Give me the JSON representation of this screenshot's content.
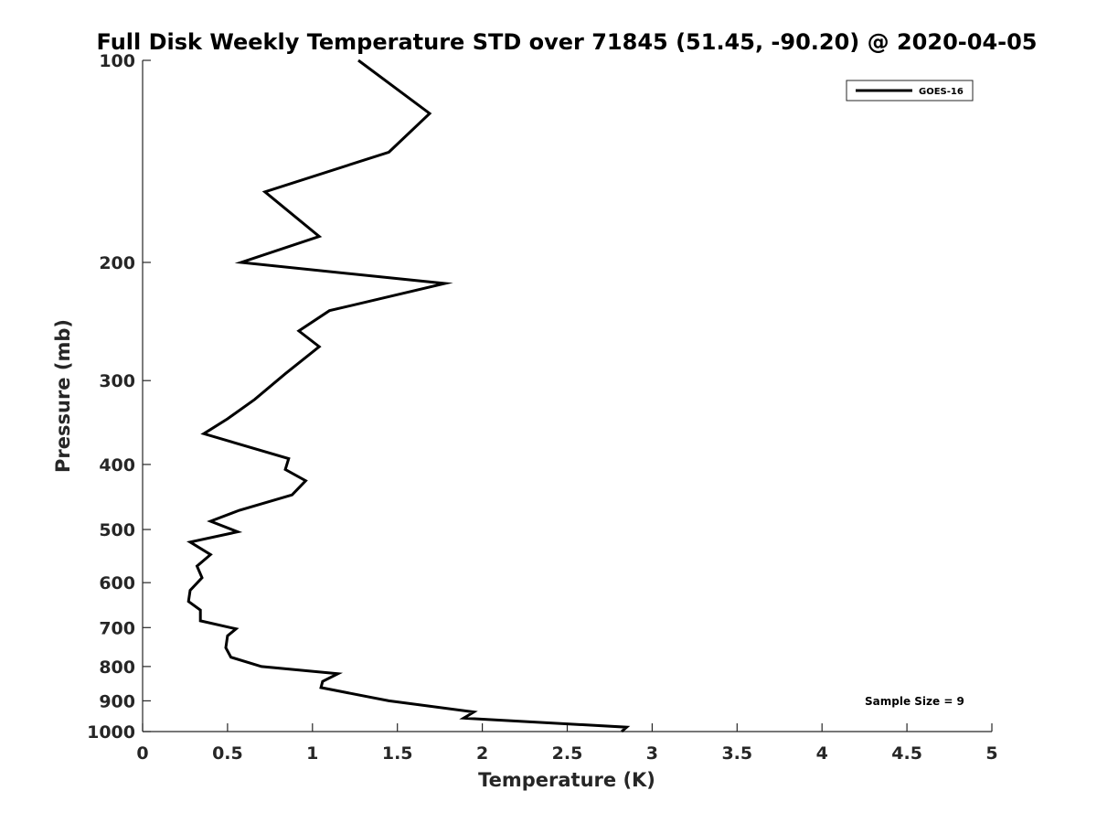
{
  "chart_data": {
    "type": "line",
    "title": "Full Disk Weekly Temperature STD over 71845 (51.45, -90.20) @ 2020-04-05",
    "xlabel": "Temperature (K)",
    "ylabel": "Pressure (mb)",
    "xlim": [
      0,
      5
    ],
    "ylim": [
      100,
      1000
    ],
    "y_scale": "log",
    "y_reversed": true,
    "x_ticks": [
      "0",
      "0.5",
      "1",
      "1.5",
      "2",
      "2.5",
      "3",
      "3.5",
      "4",
      "4.5",
      "5"
    ],
    "y_ticks": [
      "100",
      "200",
      "300",
      "400",
      "500",
      "600",
      "700",
      "800",
      "900",
      "1000"
    ],
    "grid": false,
    "legend_position": "top-right",
    "series": [
      {
        "name": "GOES-16",
        "color": "#000000",
        "x": [
          1.27,
          1.69,
          1.45,
          0.72,
          1.04,
          0.58,
          1.78,
          1.1,
          0.92,
          1.04,
          0.84,
          0.66,
          0.5,
          0.36,
          0.86,
          0.84,
          0.96,
          0.88,
          0.57,
          0.4,
          0.56,
          0.28,
          0.4,
          0.32,
          0.35,
          0.28,
          0.27,
          0.34,
          0.34,
          0.55,
          0.5,
          0.49,
          0.52,
          0.7,
          1.15,
          1.06,
          1.05,
          1.45,
          1.95,
          1.89,
          2.85,
          2.82
        ],
        "y": [
          100,
          120,
          137,
          157,
          183,
          200,
          215,
          236,
          253,
          267,
          293,
          320,
          342,
          360,
          392,
          407,
          423,
          444,
          468,
          486,
          504,
          522,
          545,
          567,
          590,
          616,
          640,
          659,
          684,
          703,
          720,
          750,
          775,
          800,
          820,
          842,
          860,
          900,
          935,
          955,
          985,
          1000
        ]
      }
    ],
    "annotations": [
      "Sample Size = 9"
    ]
  }
}
